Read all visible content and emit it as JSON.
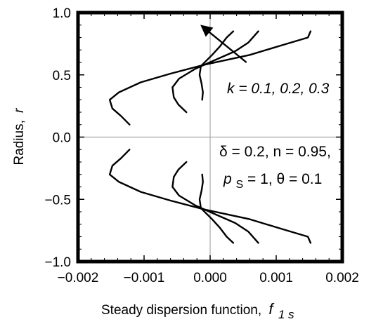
{
  "chart_data": {
    "type": "line",
    "title": "",
    "xlabel": "Steady dispersion function,",
    "xlabel_symbol": "f",
    "xlabel_subscript": "1 s",
    "ylabel": "Radius,",
    "ylabel_symbol": "r",
    "xlim": [
      -0.002,
      0.002
    ],
    "ylim": [
      -1.0,
      1.0
    ],
    "x_ticks": [
      -0.002,
      -0.001,
      0.0,
      0.001,
      0.002
    ],
    "x_tick_labels": [
      "−0.002",
      "−0.001",
      "0.000",
      "0.001",
      "0.002"
    ],
    "y_ticks": [
      1.0,
      0.5,
      0.0,
      -0.5,
      -1.0
    ],
    "y_tick_labels": [
      "1.0",
      "0.5",
      "0.0",
      "−0.5",
      "−1.0"
    ],
    "grid": "zero lines only",
    "series": [
      {
        "curve": "k = 0.1",
        "upper": [
          [
            -0.00012,
            0.3
          ],
          [
            -0.00011,
            0.36
          ],
          [
            -0.00013,
            0.43
          ],
          [
            -0.00016,
            0.5
          ],
          [
            -0.00014,
            0.57
          ],
          [
            3e-05,
            0.66
          ],
          [
            0.00015,
            0.73
          ],
          [
            0.00025,
            0.8
          ],
          [
            0.00035,
            0.85
          ]
        ],
        "lower": [
          [
            -0.00012,
            -0.3
          ],
          [
            -0.00011,
            -0.36
          ],
          [
            -0.00013,
            -0.43
          ],
          [
            -0.00016,
            -0.5
          ],
          [
            -0.00014,
            -0.57
          ],
          [
            3e-05,
            -0.66
          ],
          [
            0.00015,
            -0.73
          ],
          [
            0.00025,
            -0.8
          ],
          [
            0.00035,
            -0.85
          ]
        ]
      },
      {
        "curve": "k = 0.2",
        "upper": [
          [
            -0.00036,
            0.2
          ],
          [
            -0.00048,
            0.26
          ],
          [
            -0.00055,
            0.32
          ],
          [
            -0.00057,
            0.4
          ],
          [
            -0.00047,
            0.47
          ],
          [
            -0.00022,
            0.55
          ],
          [
            8e-05,
            0.62
          ],
          [
            0.00038,
            0.69
          ],
          [
            0.00058,
            0.76
          ],
          [
            0.00073,
            0.85
          ]
        ],
        "lower": [
          [
            -0.00036,
            -0.2
          ],
          [
            -0.00048,
            -0.26
          ],
          [
            -0.00055,
            -0.32
          ],
          [
            -0.00057,
            -0.4
          ],
          [
            -0.00047,
            -0.47
          ],
          [
            -0.00022,
            -0.55
          ],
          [
            8e-05,
            -0.62
          ],
          [
            0.00038,
            -0.69
          ],
          [
            0.00058,
            -0.76
          ],
          [
            0.00073,
            -0.85
          ]
        ]
      },
      {
        "curve": "k = 0.3",
        "upper": [
          [
            -0.00122,
            0.1
          ],
          [
            -0.00135,
            0.17
          ],
          [
            -0.00148,
            0.23
          ],
          [
            -0.00152,
            0.3
          ],
          [
            -0.00138,
            0.36
          ],
          [
            -0.00105,
            0.44
          ],
          [
            -0.0006,
            0.51
          ],
          [
            -0.0001,
            0.58
          ],
          [
            0.0006,
            0.66
          ],
          [
            0.0011,
            0.74
          ],
          [
            0.00148,
            0.8
          ],
          [
            0.00152,
            0.85
          ]
        ],
        "lower": [
          [
            -0.00122,
            -0.1
          ],
          [
            -0.00135,
            -0.17
          ],
          [
            -0.00148,
            -0.23
          ],
          [
            -0.00152,
            -0.3
          ],
          [
            -0.00138,
            -0.36
          ],
          [
            -0.00105,
            -0.44
          ],
          [
            -0.0006,
            -0.51
          ],
          [
            -0.0001,
            -0.58
          ],
          [
            0.0006,
            -0.66
          ],
          [
            0.0011,
            -0.74
          ],
          [
            0.00148,
            -0.8
          ],
          [
            0.00152,
            -0.85
          ]
        ]
      }
    ],
    "annotations": {
      "k_label": "k = 0.1,  0.2,  0.3",
      "params_line1": "δ = 0.2,  n = 0.95,",
      "params_line2": "p",
      "params_line2_sub": "S",
      "params_line2_rest": " = 1,  θ = 0.1",
      "arrow": {
        "from": [
          0.00055,
          0.6
        ],
        "to": [
          -0.00012,
          0.89
        ]
      }
    }
  }
}
